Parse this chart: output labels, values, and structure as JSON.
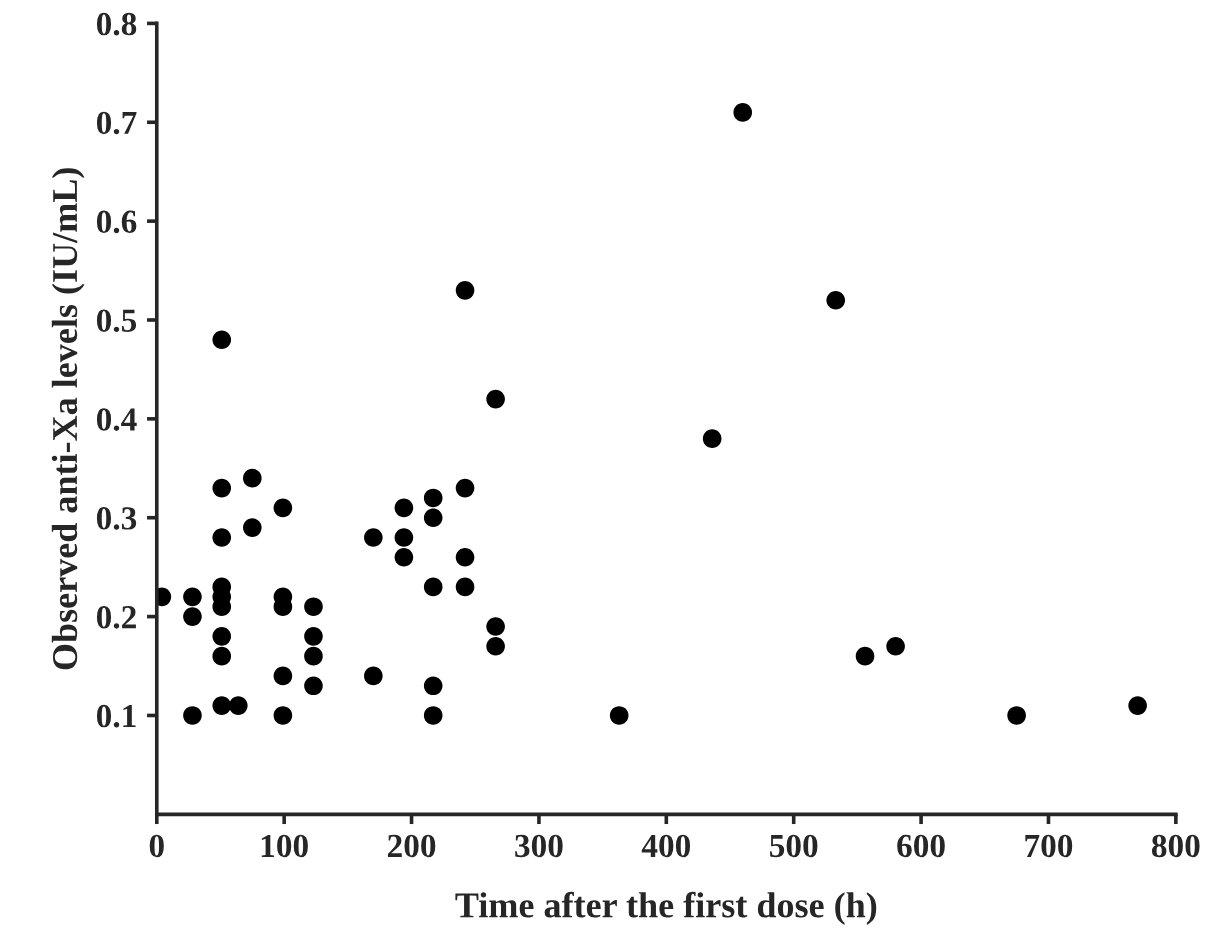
{
  "chart_data": {
    "type": "scatter",
    "xlabel": "Time after the first dose (h)",
    "ylabel": "Observed anti-Xa levels (IU/mL)",
    "xlim": [
      0,
      800
    ],
    "ylim": [
      0,
      0.8
    ],
    "xticks": [
      0,
      100,
      200,
      300,
      400,
      500,
      600,
      700,
      800
    ],
    "yticks": [
      0.1,
      0.2,
      0.3,
      0.4,
      0.5,
      0.6,
      0.7,
      0.8
    ],
    "marker": "circle",
    "grid": false,
    "series": [
      {
        "color": "#000000",
        "x": [
          4,
          28,
          28,
          28,
          51,
          51,
          51,
          51,
          51,
          51,
          51,
          51,
          51,
          64,
          75,
          75,
          99,
          99,
          99,
          99,
          99,
          123,
          123,
          123,
          123,
          170,
          170,
          194,
          194,
          194,
          217,
          217,
          217,
          217,
          217,
          242,
          242,
          242,
          242,
          266,
          266,
          266,
          363,
          436,
          460,
          533,
          556,
          580,
          675,
          770
        ],
        "values": [
          0.22,
          0.22,
          0.2,
          0.1,
          0.48,
          0.33,
          0.28,
          0.23,
          0.22,
          0.21,
          0.18,
          0.16,
          0.11,
          0.11,
          0.34,
          0.29,
          0.31,
          0.22,
          0.21,
          0.14,
          0.1,
          0.21,
          0.18,
          0.16,
          0.13,
          0.28,
          0.14,
          0.31,
          0.28,
          0.26,
          0.32,
          0.3,
          0.23,
          0.13,
          0.1,
          0.53,
          0.33,
          0.26,
          0.23,
          0.42,
          0.19,
          0.17,
          0.1,
          0.38,
          0.71,
          0.52,
          0.16,
          0.17,
          0.1,
          0.11
        ]
      }
    ]
  }
}
